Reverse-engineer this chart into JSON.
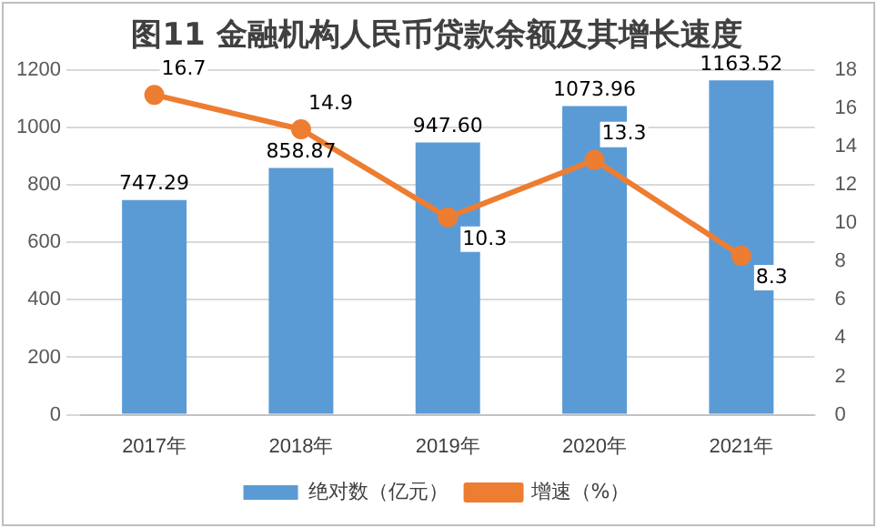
{
  "chart_data": {
    "type": "bar",
    "title": "图11 金融机构人民币贷款余额及其增长速度",
    "categories": [
      "2017年",
      "2018年",
      "2019年",
      "2020年",
      "2021年"
    ],
    "series": [
      {
        "name": "绝对数（亿元）",
        "color": "#5b9bd5",
        "values": [
          747.29,
          858.87,
          947.6,
          1073.96,
          1163.52
        ],
        "value_labels": [
          "747.29",
          "858.87",
          "947.60",
          "1073.96",
          "1163.52"
        ]
      },
      {
        "name": "增速（%）",
        "type": "line",
        "axis": "y2",
        "color": "#ed7d31",
        "values": [
          16.7,
          14.9,
          10.3,
          13.3,
          8.3
        ],
        "value_labels": [
          "16.7",
          "14.9",
          "10.3",
          "13.3",
          "8.3"
        ]
      }
    ],
    "ylim": [
      0,
      1200
    ],
    "yticks": [
      0,
      200,
      400,
      600,
      800,
      1000,
      1200
    ],
    "y2lim": [
      0,
      18
    ],
    "y2ticks": [
      0,
      2,
      4,
      6,
      8,
      10,
      12,
      14,
      16,
      18
    ],
    "grid": "y",
    "legend": "bottom",
    "marker": "circle"
  }
}
